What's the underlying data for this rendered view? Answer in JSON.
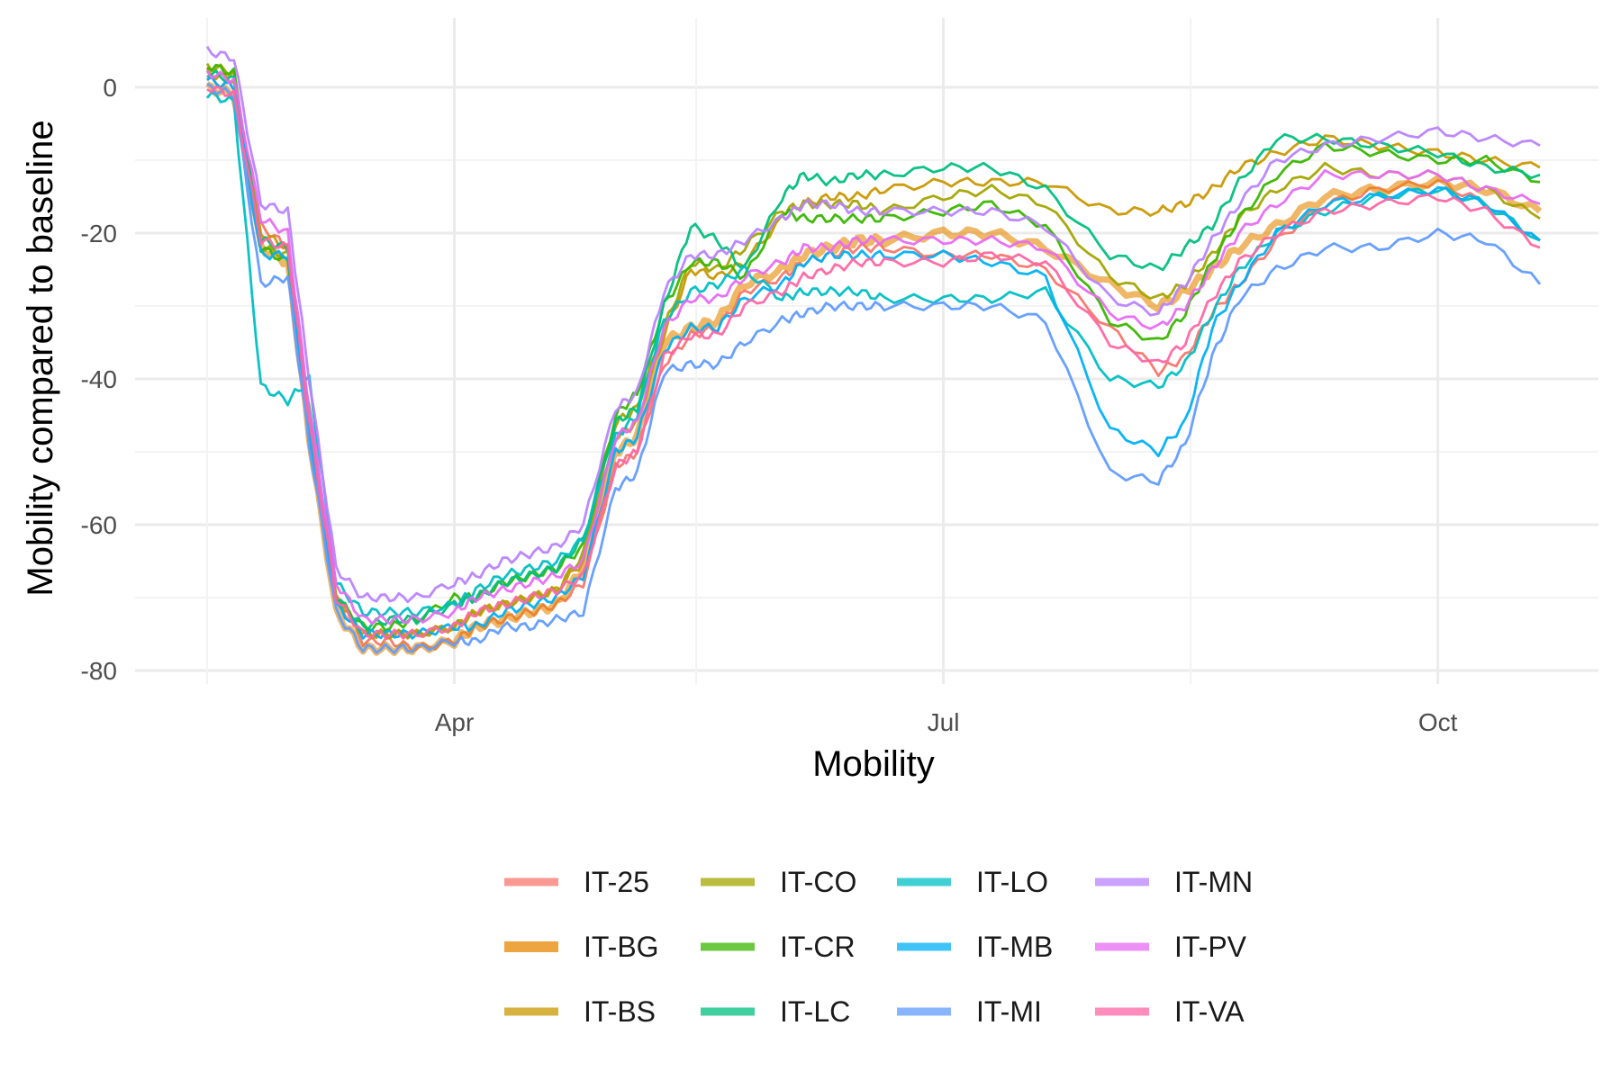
{
  "chart_data": {
    "type": "line",
    "title": "",
    "xlabel": "Mobility",
    "ylabel": "Mobility compared to baseline",
    "x_ticks": [
      "Apr",
      "Jul",
      "Oct"
    ],
    "y_ticks": [
      0,
      -20,
      -40,
      -60,
      -80
    ],
    "ylim": [
      -81,
      8
    ],
    "grid": true,
    "legend_position": "bottom",
    "x": [
      "2020-02-15",
      "2020-02-20",
      "2020-02-25",
      "2020-03-01",
      "2020-03-05",
      "2020-03-10",
      "2020-03-15",
      "2020-03-20",
      "2020-03-25",
      "2020-04-01",
      "2020-04-05",
      "2020-04-10",
      "2020-04-15",
      "2020-04-20",
      "2020-04-25",
      "2020-05-01",
      "2020-05-05",
      "2020-05-10",
      "2020-05-15",
      "2020-05-20",
      "2020-05-25",
      "2020-06-01",
      "2020-06-05",
      "2020-06-10",
      "2020-06-15",
      "2020-06-20",
      "2020-07-01",
      "2020-07-10",
      "2020-07-20",
      "2020-08-01",
      "2020-08-10",
      "2020-08-15",
      "2020-08-20",
      "2020-08-25",
      "2020-09-01",
      "2020-09-10",
      "2020-09-20",
      "2020-10-01",
      "2020-10-10",
      "2020-10-20"
    ],
    "series": [
      {
        "name": "IT-25",
        "color": "#F8766D",
        "values": [
          1,
          0,
          -19,
          -22,
          -48,
          -70,
          -76,
          -76,
          -77,
          -76,
          -74,
          -73,
          -72,
          -71,
          -68,
          -52,
          -50,
          -38,
          -34,
          -33,
          -28,
          -26,
          -24,
          -23,
          -22,
          -22,
          -23,
          -23,
          -25,
          -33,
          -39,
          -37,
          -31,
          -27,
          -21,
          -16,
          -14,
          -13,
          -16,
          -21
        ]
      },
      {
        "name": "IT-BG",
        "color": "#E58700",
        "values": [
          0,
          -1,
          -22,
          -24,
          -48,
          -72,
          -77,
          -77,
          -77,
          -76,
          -74,
          -73,
          -72,
          -71,
          -66,
          -50,
          -48,
          -35,
          -33,
          -32,
          -27,
          -25,
          -23,
          -22,
          -21,
          -21,
          -20,
          -20,
          -22,
          -27,
          -30,
          -28,
          -25,
          -22,
          -19,
          -15,
          -14,
          -13,
          -14,
          -17
        ]
      },
      {
        "name": "IT-BS",
        "color": "#C99800",
        "values": [
          2,
          1,
          -20,
          -22,
          -46,
          -70,
          -75,
          -75,
          -75,
          -74,
          -72,
          -71,
          -70,
          -69,
          -65,
          -48,
          -46,
          -34,
          -25,
          -26,
          -24,
          -18,
          -16,
          -15,
          -15,
          -14,
          -13,
          -13,
          -13,
          -17,
          -17,
          -16,
          -14,
          -11,
          -9,
          -7,
          -8,
          -9,
          -10,
          -11
        ]
      },
      {
        "name": "IT-CO",
        "color": "#A3A500",
        "values": [
          3,
          2,
          -22,
          -23,
          -45,
          -70,
          -75,
          -75,
          -75,
          -74,
          -72,
          -71,
          -70,
          -69,
          -64,
          -46,
          -44,
          -33,
          -24,
          -25,
          -22,
          -17,
          -16,
          -16,
          -16,
          -17,
          -15,
          -14,
          -16,
          -26,
          -29,
          -27,
          -23,
          -18,
          -14,
          -11,
          -12,
          -12,
          -14,
          -18
        ]
      },
      {
        "name": "IT-CR",
        "color": "#39B600",
        "values": [
          3,
          2,
          -22,
          -24,
          -44,
          -70,
          -74,
          -74,
          -73,
          -70,
          -70,
          -68,
          -67,
          -66,
          -63,
          -45,
          -42,
          -30,
          -24,
          -24,
          -26,
          -17,
          -18,
          -18,
          -18,
          -18,
          -17,
          -16,
          -19,
          -32,
          -35,
          -31,
          -24,
          -18,
          -12,
          -8,
          -9,
          -10,
          -10,
          -13
        ]
      },
      {
        "name": "IT-LC",
        "color": "#00BF7D",
        "values": [
          2,
          1,
          -21,
          -22,
          -45,
          -70,
          -74,
          -73,
          -73,
          -71,
          -70,
          -68,
          -67,
          -66,
          -62,
          -46,
          -44,
          -30,
          -19,
          -21,
          -25,
          -15,
          -12,
          -13,
          -12,
          -12,
          -11,
          -11,
          -14,
          -23,
          -25,
          -22,
          -19,
          -13,
          -7,
          -7,
          -8,
          -9,
          -11,
          -12
        ]
      },
      {
        "name": "IT-LO",
        "color": "#00BFC4",
        "values": [
          -1,
          -2,
          -41,
          -43,
          -40,
          -68,
          -72,
          -72,
          -72,
          -71,
          -69,
          -67,
          -66,
          -65,
          -62,
          -48,
          -45,
          -32,
          -28,
          -27,
          -25,
          -29,
          -28,
          -28,
          -28,
          -29,
          -29,
          -29,
          -28,
          -40,
          -41,
          -38,
          -31,
          -25,
          -20,
          -17,
          -15,
          -14,
          -16,
          -21
        ]
      },
      {
        "name": "IT-MB",
        "color": "#00B0F6",
        "values": [
          1,
          0,
          -23,
          -23,
          -47,
          -71,
          -75,
          -75,
          -75,
          -74,
          -74,
          -72,
          -71,
          -70,
          -67,
          -50,
          -48,
          -36,
          -33,
          -33,
          -29,
          -27,
          -24,
          -23,
          -23,
          -23,
          -23,
          -24,
          -26,
          -47,
          -50,
          -46,
          -33,
          -27,
          -20,
          -16,
          -15,
          -14,
          -16,
          -21
        ]
      },
      {
        "name": "IT-MI",
        "color": "#619CFF",
        "values": [
          0,
          -1,
          -27,
          -26,
          -49,
          -72,
          -77,
          -77,
          -77,
          -76,
          -76,
          -74,
          -74,
          -73,
          -72,
          -55,
          -53,
          -39,
          -38,
          -38,
          -35,
          -32,
          -31,
          -30,
          -30,
          -30,
          -30,
          -30,
          -32,
          -53,
          -54,
          -49,
          -37,
          -29,
          -25,
          -22,
          -22,
          -20,
          -21,
          -27
        ]
      },
      {
        "name": "IT-MN",
        "color": "#B983FF",
        "values": [
          5,
          4,
          -16,
          -17,
          -40,
          -66,
          -70,
          -70,
          -70,
          -68,
          -67,
          -65,
          -64,
          -63,
          -60,
          -44,
          -42,
          -28,
          -23,
          -23,
          -21,
          -18,
          -16,
          -16,
          -17,
          -17,
          -17,
          -17,
          -19,
          -29,
          -31,
          -27,
          -21,
          -16,
          -10,
          -8,
          -7,
          -6,
          -7,
          -8
        ]
      },
      {
        "name": "IT-PV",
        "color": "#E76BF3",
        "values": [
          2,
          1,
          -18,
          -20,
          -44,
          -68,
          -73,
          -73,
          -73,
          -72,
          -70,
          -69,
          -68,
          -67,
          -65,
          -48,
          -46,
          -33,
          -29,
          -29,
          -26,
          -24,
          -22,
          -22,
          -21,
          -21,
          -21,
          -21,
          -22,
          -31,
          -33,
          -30,
          -25,
          -20,
          -16,
          -12,
          -12,
          -12,
          -14,
          -16
        ]
      },
      {
        "name": "IT-VA",
        "color": "#FF67A4",
        "values": [
          0,
          -1,
          -21,
          -22,
          -46,
          -70,
          -75,
          -75,
          -75,
          -74,
          -72,
          -71,
          -70,
          -69,
          -67,
          -52,
          -50,
          -37,
          -34,
          -34,
          -30,
          -28,
          -26,
          -25,
          -24,
          -24,
          -24,
          -23,
          -24,
          -35,
          -38,
          -35,
          -29,
          -24,
          -20,
          -17,
          -16,
          -15,
          -17,
          -22
        ]
      }
    ]
  }
}
